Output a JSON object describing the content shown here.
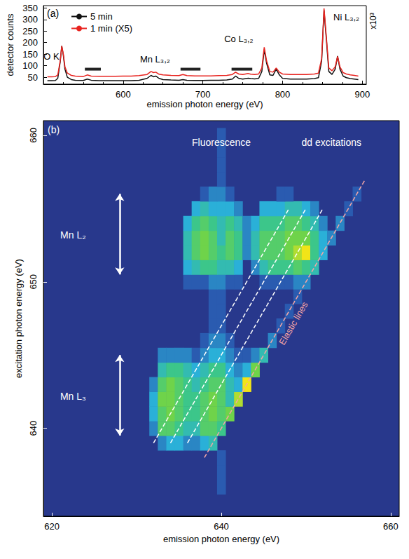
{
  "chart_data": [
    {
      "type": "line",
      "title": "(a)",
      "x_label": "emission photon energy (eV)",
      "y_label": "detector counts",
      "y_unit": "x10³",
      "xlim": [
        500,
        905
      ],
      "xticks": [
        600,
        700,
        800,
        900
      ],
      "ylim": [
        20,
        360
      ],
      "yticks": [
        50,
        100,
        150,
        200,
        250,
        300,
        350
      ],
      "grid": false,
      "legend": "top-left",
      "x": [
        505,
        510,
        515,
        518,
        521,
        523,
        525,
        527,
        530,
        535,
        540,
        550,
        555,
        560,
        570,
        580,
        590,
        600,
        610,
        620,
        630,
        635,
        638,
        641,
        645,
        650,
        660,
        670,
        675,
        680,
        690,
        700,
        710,
        720,
        730,
        737,
        741,
        745,
        750,
        757,
        760,
        765,
        770,
        774,
        777,
        780,
        784,
        788,
        792,
        796,
        800,
        810,
        820,
        830,
        840,
        845,
        849,
        852,
        855,
        858,
        862,
        866,
        869,
        872,
        876,
        880,
        885,
        890,
        895
      ],
      "series": [
        {
          "name": "5 min",
          "color": "#111111",
          "values": [
            35,
            35,
            36,
            45,
            115,
            185,
            145,
            85,
            50,
            40,
            37,
            36,
            42,
            37,
            35,
            35,
            35,
            35,
            35,
            37,
            45,
            58,
            52,
            55,
            45,
            40,
            38,
            37,
            40,
            37,
            36,
            36,
            37,
            37,
            38,
            42,
            55,
            45,
            42,
            46,
            44,
            43,
            45,
            75,
            170,
            110,
            60,
            58,
            85,
            60,
            45,
            42,
            42,
            42,
            44,
            48,
            120,
            340,
            210,
            75,
            62,
            85,
            142,
            85,
            55,
            48,
            44,
            42,
            40
          ]
        },
        {
          "name": "1 min (X5)",
          "color": "#e8231f",
          "values": [
            52,
            52,
            53,
            60,
            120,
            185,
            150,
            95,
            68,
            58,
            55,
            53,
            60,
            55,
            54,
            54,
            54,
            55,
            55,
            57,
            62,
            75,
            70,
            72,
            63,
            60,
            58,
            57,
            62,
            57,
            56,
            56,
            56,
            57,
            58,
            62,
            72,
            64,
            62,
            66,
            63,
            62,
            64,
            90,
            180,
            120,
            75,
            72,
            90,
            72,
            64,
            62,
            62,
            62,
            64,
            68,
            130,
            348,
            220,
            90,
            78,
            95,
            140,
            95,
            70,
            64,
            60,
            58,
            55
          ]
        }
      ],
      "marked_ranges": [
        {
          "x": [
            552,
            572
          ],
          "y": 85
        },
        {
          "x": [
            672,
            697
          ],
          "y": 85
        },
        {
          "x": [
            736,
            762
          ],
          "y": 85
        }
      ],
      "annotations": [
        {
          "text": "O K",
          "x": 510,
          "y": 140
        },
        {
          "text": "Mn L₃,₂",
          "x": 640,
          "y": 128
        },
        {
          "text": "Co L₃,₂",
          "x": 745,
          "y": 215
        },
        {
          "text": "Ni L₃,₂",
          "x": 880,
          "y": 310
        }
      ]
    },
    {
      "type": "heatmap",
      "title": "(b)",
      "x_label": "emission photon energy (eV)",
      "y_label": "excitation photon energy (eV)",
      "xlim": [
        619,
        661
      ],
      "xticks": [
        620,
        640,
        660
      ],
      "ylim": [
        634,
        661
      ],
      "yticks": [
        640,
        650,
        660
      ],
      "color_range": [
        0,
        10
      ],
      "cells": [
        [
          640,
          636,
          2
        ],
        [
          640,
          637,
          2
        ],
        [
          640,
          638,
          2
        ],
        [
          633,
          639,
          3
        ],
        [
          634,
          639,
          4
        ],
        [
          635,
          639,
          4
        ],
        [
          636,
          639,
          3
        ],
        [
          637,
          639,
          3
        ],
        [
          638,
          639,
          4
        ],
        [
          639,
          639,
          5
        ],
        [
          632,
          640,
          3
        ],
        [
          633,
          640,
          7
        ],
        [
          634,
          640,
          7
        ],
        [
          635,
          640,
          6
        ],
        [
          636,
          640,
          5
        ],
        [
          637,
          640,
          5
        ],
        [
          638,
          640,
          7
        ],
        [
          639,
          640,
          7
        ],
        [
          640,
          640,
          6
        ],
        [
          632,
          641,
          4
        ],
        [
          633,
          641,
          7
        ],
        [
          634,
          641,
          8
        ],
        [
          635,
          641,
          7
        ],
        [
          636,
          641,
          6
        ],
        [
          637,
          641,
          6
        ],
        [
          638,
          641,
          7
        ],
        [
          639,
          641,
          8
        ],
        [
          640,
          641,
          7
        ],
        [
          641,
          641,
          8
        ],
        [
          632,
          642,
          4
        ],
        [
          633,
          642,
          8
        ],
        [
          634,
          642,
          8
        ],
        [
          635,
          642,
          7
        ],
        [
          636,
          642,
          6
        ],
        [
          637,
          642,
          6
        ],
        [
          638,
          642,
          7
        ],
        [
          639,
          642,
          8
        ],
        [
          640,
          642,
          7
        ],
        [
          641,
          642,
          5
        ],
        [
          642,
          642,
          9
        ],
        [
          632,
          643,
          3
        ],
        [
          633,
          643,
          7
        ],
        [
          634,
          643,
          8
        ],
        [
          635,
          643,
          7
        ],
        [
          636,
          643,
          6
        ],
        [
          637,
          643,
          5
        ],
        [
          638,
          643,
          6
        ],
        [
          639,
          643,
          7
        ],
        [
          640,
          643,
          7
        ],
        [
          641,
          643,
          5
        ],
        [
          642,
          643,
          4
        ],
        [
          643,
          643,
          10
        ],
        [
          633,
          644,
          5
        ],
        [
          634,
          644,
          6
        ],
        [
          635,
          644,
          6
        ],
        [
          636,
          644,
          5
        ],
        [
          637,
          644,
          4
        ],
        [
          638,
          644,
          5
        ],
        [
          639,
          644,
          6
        ],
        [
          640,
          644,
          6
        ],
        [
          641,
          644,
          4
        ],
        [
          642,
          644,
          3
        ],
        [
          643,
          644,
          4
        ],
        [
          644,
          644,
          8
        ],
        [
          633,
          645,
          3
        ],
        [
          634,
          645,
          3
        ],
        [
          635,
          645,
          3
        ],
        [
          636,
          645,
          3
        ],
        [
          637,
          645,
          2
        ],
        [
          638,
          645,
          3
        ],
        [
          639,
          645,
          4
        ],
        [
          640,
          645,
          4
        ],
        [
          641,
          645,
          3
        ],
        [
          642,
          645,
          2
        ],
        [
          643,
          645,
          2
        ],
        [
          644,
          645,
          3
        ],
        [
          645,
          645,
          5
        ],
        [
          638,
          646,
          2
        ],
        [
          639,
          646,
          3
        ],
        [
          640,
          646,
          3
        ],
        [
          641,
          646,
          2
        ],
        [
          646,
          646,
          3
        ],
        [
          639,
          647,
          2
        ],
        [
          640,
          647,
          2
        ],
        [
          647,
          647,
          2
        ],
        [
          639,
          648,
          2
        ],
        [
          640,
          648,
          2
        ],
        [
          648,
          648,
          2
        ],
        [
          639,
          649,
          2
        ],
        [
          640,
          649,
          2
        ],
        [
          649,
          649,
          2
        ],
        [
          636,
          650,
          2
        ],
        [
          637,
          650,
          2
        ],
        [
          638,
          650,
          2
        ],
        [
          639,
          650,
          3
        ],
        [
          640,
          650,
          3
        ],
        [
          641,
          650,
          2
        ],
        [
          642,
          650,
          2
        ],
        [
          645,
          650,
          2
        ],
        [
          646,
          650,
          2
        ],
        [
          647,
          650,
          2
        ],
        [
          648,
          650,
          2
        ],
        [
          649,
          650,
          3
        ],
        [
          650,
          650,
          3
        ],
        [
          636,
          651,
          4
        ],
        [
          637,
          651,
          5
        ],
        [
          638,
          651,
          6
        ],
        [
          639,
          651,
          6
        ],
        [
          640,
          651,
          5
        ],
        [
          641,
          651,
          5
        ],
        [
          642,
          651,
          4
        ],
        [
          644,
          651,
          3
        ],
        [
          645,
          651,
          5
        ],
        [
          646,
          651,
          6
        ],
        [
          647,
          651,
          6
        ],
        [
          648,
          651,
          6
        ],
        [
          649,
          651,
          7
        ],
        [
          650,
          651,
          6
        ],
        [
          651,
          651,
          5
        ],
        [
          636,
          652,
          5
        ],
        [
          637,
          652,
          7
        ],
        [
          638,
          652,
          8
        ],
        [
          639,
          652,
          7
        ],
        [
          640,
          652,
          6
        ],
        [
          641,
          652,
          7
        ],
        [
          642,
          652,
          6
        ],
        [
          643,
          652,
          3
        ],
        [
          644,
          652,
          5
        ],
        [
          645,
          652,
          7
        ],
        [
          646,
          652,
          7
        ],
        [
          647,
          652,
          7
        ],
        [
          648,
          652,
          8
        ],
        [
          649,
          652,
          9
        ],
        [
          650,
          652,
          10
        ],
        [
          651,
          652,
          6
        ],
        [
          652,
          652,
          4
        ],
        [
          636,
          653,
          5
        ],
        [
          637,
          653,
          7
        ],
        [
          638,
          653,
          8
        ],
        [
          639,
          653,
          7
        ],
        [
          640,
          653,
          5
        ],
        [
          641,
          653,
          7
        ],
        [
          642,
          653,
          6
        ],
        [
          643,
          653,
          3
        ],
        [
          644,
          653,
          5
        ],
        [
          645,
          653,
          7
        ],
        [
          646,
          653,
          7
        ],
        [
          647,
          653,
          7
        ],
        [
          648,
          653,
          8
        ],
        [
          649,
          653,
          8
        ],
        [
          650,
          653,
          8
        ],
        [
          651,
          653,
          6
        ],
        [
          652,
          653,
          4
        ],
        [
          653,
          653,
          3
        ],
        [
          636,
          654,
          4
        ],
        [
          637,
          654,
          6
        ],
        [
          638,
          654,
          7
        ],
        [
          639,
          654,
          6
        ],
        [
          640,
          654,
          5
        ],
        [
          641,
          654,
          6
        ],
        [
          642,
          654,
          5
        ],
        [
          643,
          654,
          3
        ],
        [
          644,
          654,
          4
        ],
        [
          645,
          654,
          6
        ],
        [
          646,
          654,
          6
        ],
        [
          647,
          654,
          6
        ],
        [
          648,
          654,
          7
        ],
        [
          649,
          654,
          7
        ],
        [
          650,
          654,
          6
        ],
        [
          651,
          654,
          5
        ],
        [
          652,
          654,
          3
        ],
        [
          654,
          654,
          3
        ],
        [
          637,
          655,
          4
        ],
        [
          638,
          655,
          5
        ],
        [
          639,
          655,
          4
        ],
        [
          640,
          655,
          4
        ],
        [
          641,
          655,
          4
        ],
        [
          642,
          655,
          3
        ],
        [
          645,
          655,
          4
        ],
        [
          646,
          655,
          4
        ],
        [
          647,
          655,
          4
        ],
        [
          648,
          655,
          5
        ],
        [
          649,
          655,
          5
        ],
        [
          650,
          655,
          4
        ],
        [
          651,
          655,
          3
        ],
        [
          655,
          655,
          2
        ],
        [
          638,
          656,
          2
        ],
        [
          639,
          656,
          3
        ],
        [
          640,
          656,
          3
        ],
        [
          641,
          656,
          2
        ],
        [
          647,
          656,
          2
        ],
        [
          648,
          656,
          2
        ],
        [
          656,
          656,
          2
        ],
        [
          640,
          657,
          2
        ],
        [
          640,
          658,
          2
        ],
        [
          640,
          659,
          2
        ],
        [
          640,
          660,
          2
        ]
      ],
      "lines": [
        {
          "points": [
            [
              632,
              639
            ],
            [
              648,
              655
            ]
          ],
          "color": "#ffffff",
          "line_style": "dashed"
        },
        {
          "points": [
            [
              634,
              639
            ],
            [
              650,
              655
            ]
          ],
          "color": "#ffffff",
          "line_style": "dashed"
        },
        {
          "points": [
            [
              636,
              639
            ],
            [
              652,
              655
            ]
          ],
          "color": "#ffffff",
          "line_style": "dashed"
        },
        {
          "points": [
            [
              638,
              638
            ],
            [
              657,
              657
            ]
          ],
          "color": "#f4a6a6",
          "line_style": "dashed",
          "label": "Elastic lines"
        }
      ],
      "arrows": [
        {
          "x": 628,
          "y": [
            650.5,
            656
          ]
        },
        {
          "x": 628,
          "y": [
            639.5,
            645
          ]
        }
      ],
      "annotations": [
        {
          "text": "Fluorescence",
          "x": 640,
          "y": 659.5
        },
        {
          "text": "dd excitations",
          "x": 653,
          "y": 659.5
        },
        {
          "text": "Mn L₂",
          "x": 622.5,
          "y": 653.2
        },
        {
          "text": "Mn L₃",
          "x": 622.5,
          "y": 642.2
        }
      ]
    }
  ]
}
